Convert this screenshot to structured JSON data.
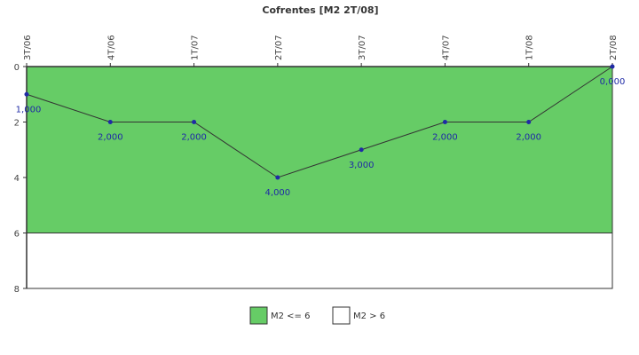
{
  "chart_data": {
    "type": "line",
    "title": "Cofrentes [M2 2T/08]",
    "xlabel": "",
    "ylabel": "",
    "categories": [
      "3T/06",
      "4T/06",
      "1T/07",
      "2T/07",
      "3T/07",
      "4T/07",
      "1T/08",
      "2T/08"
    ],
    "series": [
      {
        "values": [
          1,
          2,
          2,
          4,
          3,
          2,
          2,
          0
        ]
      }
    ],
    "data_labels": [
      "1,000",
      "2,000",
      "2,000",
      "4,000",
      "3,000",
      "2,000",
      "2,000",
      "0,000"
    ],
    "ylim": [
      0,
      8
    ],
    "y_inverted": true,
    "y_ticks": [
      "0",
      "2",
      "4",
      "6",
      "8"
    ],
    "y_tick_values": [
      0,
      2,
      4,
      6,
      8
    ],
    "x_tick_labels_position": "top",
    "grid": false,
    "threshold": 6,
    "bands": [
      {
        "name": "M2 <= 6",
        "from": 0,
        "to": 6,
        "color": "#66cc66"
      },
      {
        "name": "M2 > 6",
        "from": 6,
        "to": 8,
        "color": "#ffffff"
      }
    ],
    "legend": {
      "placement": "bottom-center",
      "items": [
        {
          "label": "M2 <= 6",
          "color": "#66cc66"
        },
        {
          "label": "M2 > 6",
          "color": "#ffffff"
        }
      ]
    },
    "colors": {
      "line": "#333333",
      "marker": "#1f2aa6",
      "data_label": "#1f2aa6",
      "axis": "#333333"
    }
  }
}
